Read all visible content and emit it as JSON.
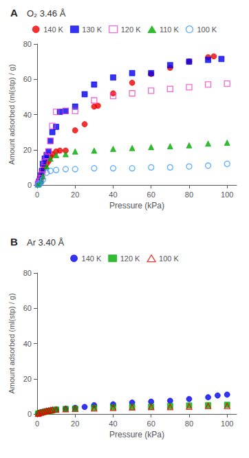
{
  "chart_data": [
    {
      "type": "scatter",
      "title": "A",
      "annotation": "O₂ 3.46 Å",
      "x_label": "Pressure (kPa)",
      "y_label": "Amount adsorbed (ml(stp) / g)",
      "xlim": [
        0,
        105
      ],
      "ylim": [
        0,
        80
      ],
      "xticks": [
        0,
        20,
        40,
        60,
        80,
        100
      ],
      "yticks": [
        0,
        20,
        40,
        60,
        80
      ],
      "grid": false,
      "legend": "top",
      "series": [
        {
          "name": "140 K",
          "color": "#ee0000",
          "marker": "circle",
          "x": [
            0.5,
            1.0,
            1.5,
            2.0,
            2.5,
            3.0,
            4.0,
            5.0,
            6.0,
            7.0,
            8.0,
            10.0,
            12.0,
            15.0,
            20.0,
            25.0,
            30.0,
            32.0,
            40.0,
            50.0,
            60.0,
            70.0,
            80.0,
            90.0,
            93.0
          ],
          "values": [
            1.0,
            2.5,
            4.0,
            5.5,
            7.0,
            8.5,
            10.5,
            12.0,
            13.5,
            16.0,
            17.5,
            19.0,
            19.5,
            19.5,
            31.0,
            34.5,
            44.5,
            45.0,
            52.0,
            58.0,
            63.0,
            66.5,
            70.0,
            72.5,
            73.0
          ]
        },
        {
          "name": "130 K",
          "color": "#0000ee",
          "marker": "square",
          "x": [
            0.5,
            1.0,
            1.5,
            2.0,
            2.5,
            3.0,
            4.0,
            5.0,
            6.0,
            7.0,
            8.0,
            10.0,
            12.0,
            15.0,
            20.0,
            25.0,
            30.0,
            40.0,
            50.0,
            60.0,
            70.0,
            80.0,
            90.0,
            97.0
          ],
          "values": [
            0.8,
            2.0,
            3.5,
            5.5,
            8.0,
            12.0,
            15.0,
            17.0,
            19.0,
            25.0,
            30.0,
            33.0,
            41.5,
            42.0,
            44.5,
            51.5,
            57.0,
            61.0,
            63.5,
            63.5,
            68.0,
            70.0,
            71.0,
            71.5
          ]
        },
        {
          "name": "120 K",
          "color": "#ee44cc",
          "marker": "open-square",
          "x": [
            0.5,
            1.0,
            1.5,
            2.0,
            2.5,
            3.0,
            4.0,
            5.0,
            6.0,
            7.0,
            8.0,
            10.0,
            15.0,
            20.0,
            30.0,
            40.0,
            50.0,
            60.0,
            70.0,
            80.0,
            90.0,
            100.0
          ],
          "values": [
            0.5,
            1.2,
            2.2,
            3.8,
            6.0,
            8.5,
            13.0,
            16.5,
            19.0,
            25.0,
            33.5,
            41.5,
            42.0,
            42.0,
            48.0,
            50.5,
            52.0,
            53.5,
            54.5,
            55.5,
            57.0,
            57.5
          ]
        },
        {
          "name": "110 K",
          "color": "#00aa00",
          "marker": "triangle",
          "x": [
            0.5,
            1.0,
            2.0,
            3.0,
            5.0,
            7.0,
            10.0,
            15.0,
            20.0,
            30.0,
            40.0,
            50.0,
            60.0,
            70.0,
            80.0,
            90.0,
            100.0
          ],
          "values": [
            0.3,
            0.8,
            2.5,
            5.0,
            10.5,
            15.0,
            17.0,
            17.5,
            19.0,
            19.5,
            20.5,
            21.0,
            21.5,
            22.0,
            22.5,
            23.5,
            24.0
          ]
        },
        {
          "name": "100 K",
          "color": "#3399ff",
          "marker": "open-circle",
          "x": [
            0.5,
            1.0,
            2.0,
            3.0,
            5.0,
            7.0,
            10.0,
            15.0,
            20.0,
            30.0,
            40.0,
            50.0,
            60.0,
            70.0,
            80.0,
            90.0,
            100.0
          ],
          "values": [
            0.2,
            0.5,
            1.5,
            3.0,
            7.0,
            8.0,
            8.5,
            9.0,
            9.0,
            9.5,
            9.5,
            9.5,
            10.0,
            10.0,
            10.5,
            11.0,
            12.0
          ]
        }
      ]
    },
    {
      "type": "scatter",
      "title": "B",
      "annotation": "Ar 3.40 Å",
      "x_label": "Pressure (kPa)",
      "y_label": "Amount adsorbed (ml(stp) / g)",
      "xlim": [
        0,
        105
      ],
      "ylim": [
        0,
        80
      ],
      "xticks": [
        0,
        20,
        40,
        60,
        80,
        100
      ],
      "yticks": [
        0,
        20,
        40,
        60,
        80
      ],
      "grid": false,
      "legend": "top",
      "series": [
        {
          "name": "140 K",
          "color": "#0000ee",
          "marker": "circle",
          "x": [
            0.5,
            1.0,
            2.0,
            3.0,
            4.0,
            5.0,
            6.0,
            7.0,
            8.0,
            10.0,
            15.0,
            20.0,
            25.0,
            30.0,
            40.0,
            50.0,
            60.0,
            70.0,
            80.0,
            90.0,
            95.0,
            100.0
          ],
          "values": [
            0.3,
            0.6,
            1.0,
            1.2,
            1.4,
            1.6,
            1.8,
            2.0,
            2.2,
            2.5,
            3.0,
            3.5,
            4.0,
            5.0,
            5.5,
            6.5,
            7.0,
            7.5,
            8.5,
            9.5,
            10.5,
            11.0
          ]
        },
        {
          "name": "120 K",
          "color": "#00aa00",
          "marker": "square",
          "x": [
            0.5,
            1.0,
            2.0,
            3.0,
            4.0,
            5.0,
            6.0,
            7.0,
            8.0,
            10.0,
            15.0,
            20.0,
            30.0,
            40.0,
            50.0,
            60.0,
            70.0,
            80.0,
            90.0,
            100.0
          ],
          "values": [
            0.2,
            0.4,
            0.7,
            1.0,
            1.2,
            1.4,
            1.6,
            1.8,
            2.0,
            2.5,
            2.8,
            3.0,
            3.5,
            3.8,
            4.0,
            4.2,
            4.5,
            4.8,
            5.0,
            5.2
          ]
        },
        {
          "name": "100 K",
          "color": "#ee0000",
          "marker": "open-triangle",
          "x": [
            0.5,
            1.0,
            2.0,
            3.0,
            4.0,
            5.0,
            6.0,
            7.0,
            8.0,
            10.0,
            15.0,
            20.0,
            30.0,
            40.0,
            50.0,
            60.0,
            70.0,
            80.0,
            90.0,
            100.0
          ],
          "values": [
            0.2,
            0.5,
            0.8,
            1.2,
            1.5,
            1.8,
            2.0,
            2.2,
            2.5,
            2.5,
            2.8,
            3.0,
            3.2,
            3.5,
            3.8,
            4.0,
            4.0,
            4.2,
            4.5,
            4.5
          ]
        }
      ]
    }
  ]
}
